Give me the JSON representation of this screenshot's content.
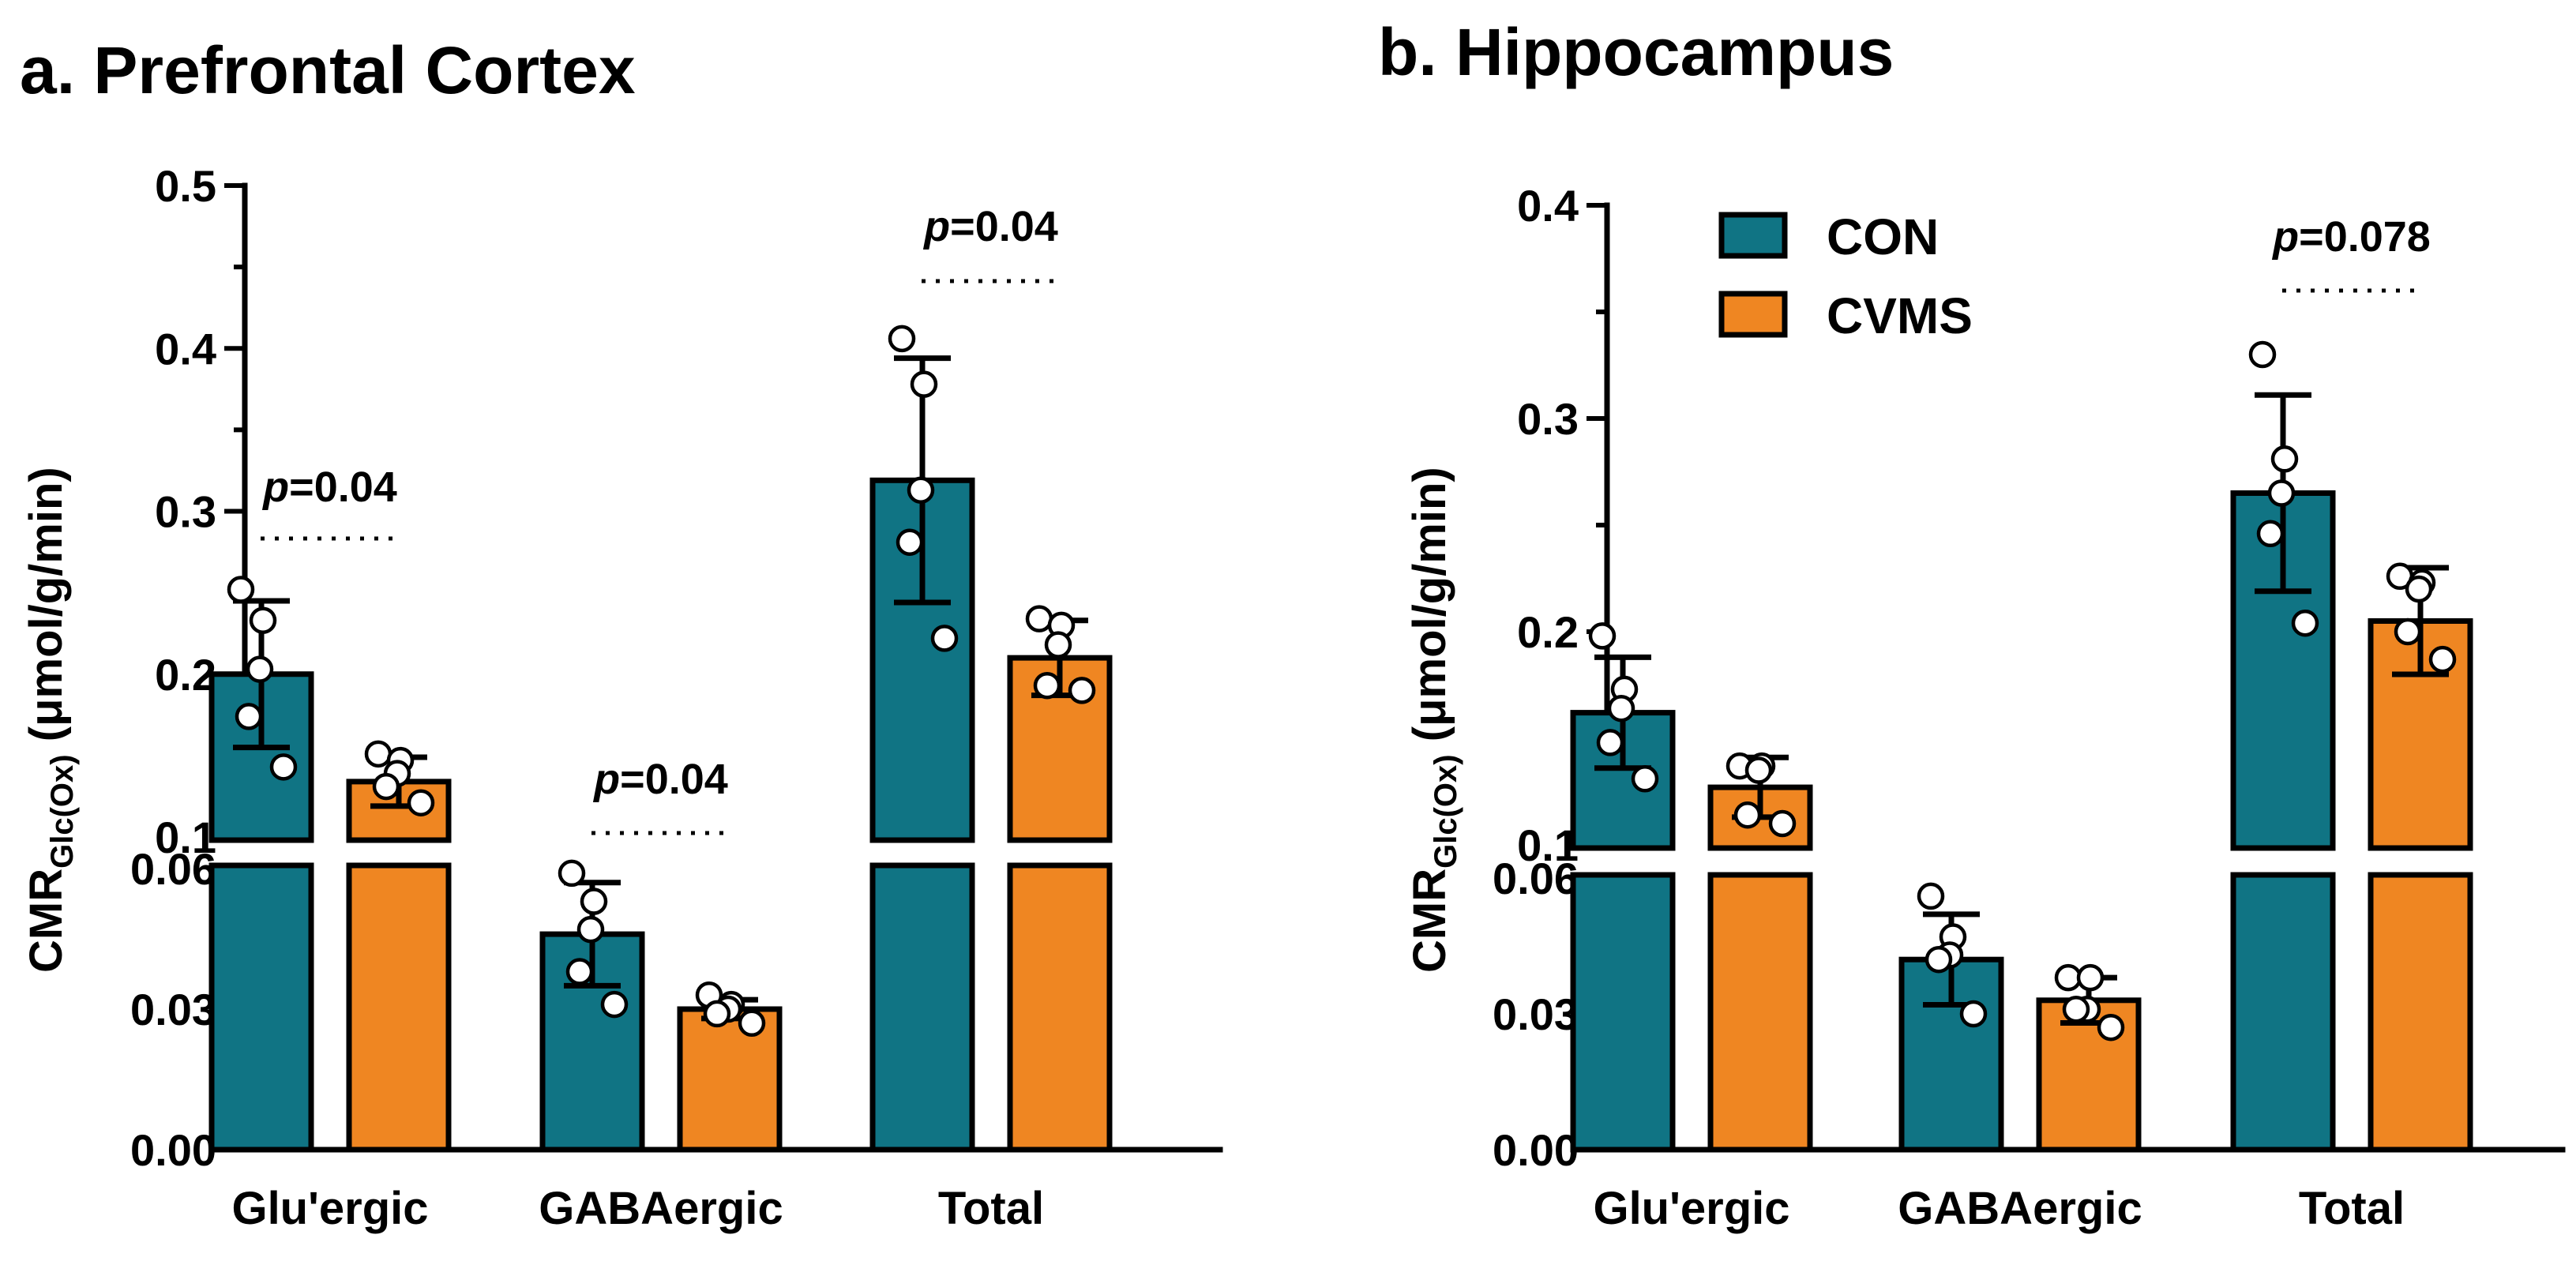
{
  "colors": {
    "CON": "#107484",
    "CVMS": "#ef8622"
  },
  "ylabel": {
    "main": "CMR",
    "sub": "Glc(Ox)",
    "unit": " (μmol/g/min)"
  },
  "legend": [
    {
      "key": "CON",
      "label": "CON"
    },
    {
      "key": "CVMS",
      "label": "CVMS"
    }
  ],
  "chart_data": [
    {
      "type": "bar",
      "title": "a. Prefrontal Cortex",
      "xlabel": "",
      "ylabel": "CMRGlc(Ox) (μmol/g/min)",
      "categories": [
        "Glu'ergic",
        "GABAergic",
        "Total"
      ],
      "y_lower_segment": {
        "range": [
          0,
          0.06
        ],
        "ticks": [
          "0.00",
          "0.03",
          "0.06"
        ],
        "tick_values": [
          0,
          0.03,
          0.06
        ]
      },
      "y_upper_segment": {
        "range": [
          0.1,
          0.5
        ],
        "ticks": [
          "0.1",
          "0.2",
          "0.3",
          "0.4",
          "0.5"
        ],
        "tick_values": [
          0.1,
          0.2,
          0.3,
          0.4,
          0.5
        ]
      },
      "series": [
        {
          "name": "CON",
          "values": [
            0.2,
            0.046,
            0.319
          ],
          "sd": [
            0.045,
            0.011,
            0.075
          ],
          "points": [
            [
              0.252,
              0.233,
              0.203,
              0.174,
              0.143
            ],
            [
              0.059,
              0.053,
              0.047,
              0.038,
              0.031
            ],
            [
              0.406,
              0.378,
              0.313,
              0.281,
              0.222
            ]
          ]
        },
        {
          "name": "CVMS",
          "values": [
            0.134,
            0.03,
            0.21
          ],
          "sd": [
            0.015,
            0.002,
            0.023
          ],
          "points": [
            [
              0.151,
              0.147,
              0.139,
              0.131,
              0.121
            ],
            [
              0.033,
              0.031,
              0.03,
              0.029,
              0.027
            ],
            [
              0.234,
              0.23,
              0.218,
              0.193,
              0.19
            ]
          ]
        }
      ],
      "annotations": [
        {
          "category": "Glu'ergic",
          "text": "=0.04",
          "label": "p=0.04"
        },
        {
          "category": "GABAergic",
          "text": "=0.04",
          "label": "p=0.04"
        },
        {
          "category": "Total",
          "text": "=0.04",
          "label": "p=0.04"
        }
      ]
    },
    {
      "type": "bar",
      "title": "b. Hippocampus",
      "xlabel": "",
      "ylabel": "CMRGlc(Ox) (μmol/g/min)",
      "categories": [
        "Glu'ergic",
        "GABAergic",
        "Total"
      ],
      "y_lower_segment": {
        "range": [
          0,
          0.06
        ],
        "ticks": [
          "0.00",
          "0.03",
          "0.06"
        ],
        "tick_values": [
          0,
          0.03,
          0.06
        ]
      },
      "y_upper_segment": {
        "range": [
          0.1,
          0.4
        ],
        "ticks": [
          "0.1",
          "0.2",
          "0.3",
          "0.4"
        ],
        "tick_values": [
          0.1,
          0.2,
          0.3,
          0.4
        ]
      },
      "series": [
        {
          "name": "CON",
          "values": [
            0.162,
            0.042,
            0.265
          ],
          "sd": [
            0.026,
            0.01,
            0.046
          ],
          "points": [
            [
              0.198,
              0.173,
              0.164,
              0.148,
              0.131
            ],
            [
              0.056,
              0.047,
              0.043,
              0.042,
              0.03
            ],
            [
              0.33,
              0.281,
              0.265,
              0.246,
              0.204
            ]
          ]
        },
        {
          "name": "CVMS",
          "values": [
            0.127,
            0.033,
            0.205
          ],
          "sd": [
            0.014,
            0.005,
            0.025
          ],
          "points": [
            [
              0.137,
              0.137,
              0.135,
              0.114,
              0.11
            ],
            [
              0.038,
              0.038,
              0.031,
              0.031,
              0.027
            ],
            [
              0.226,
              0.223,
              0.22,
              0.2,
              0.187
            ]
          ]
        }
      ],
      "annotations": [
        {
          "category": "Total",
          "text": "=0.078",
          "label": "p=0.078"
        }
      ]
    }
  ]
}
